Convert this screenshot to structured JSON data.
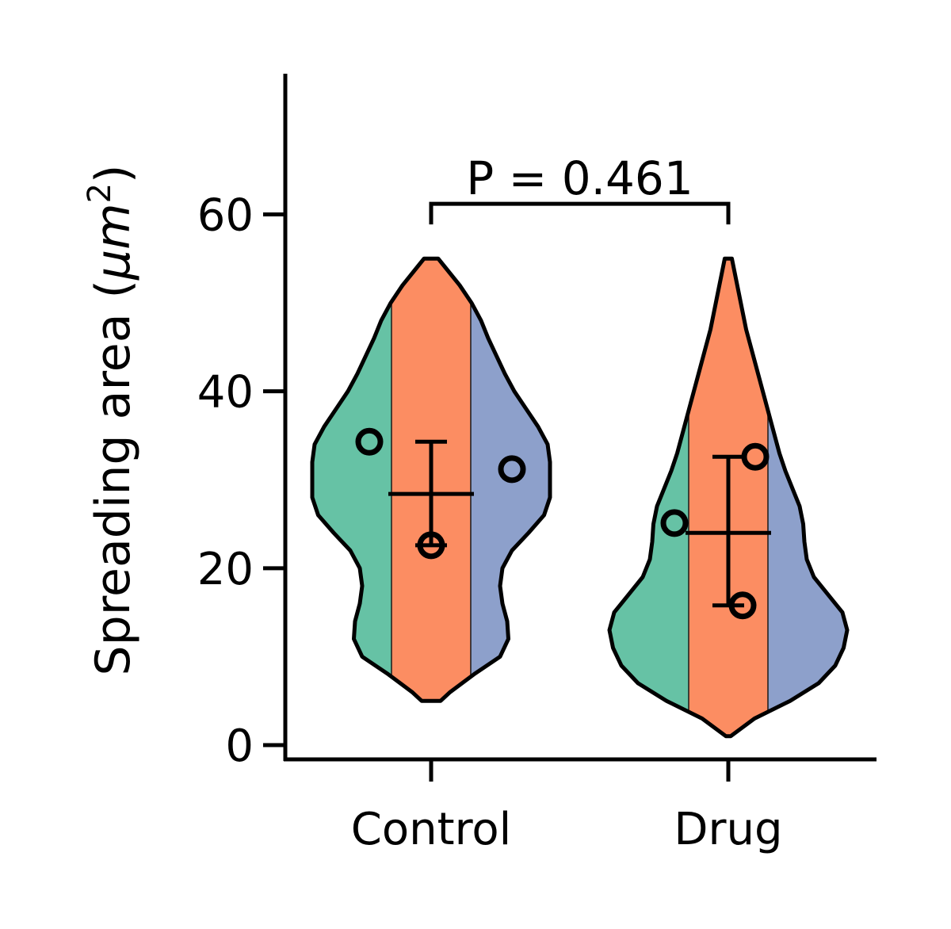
{
  "chart_data": {
    "type": "violin",
    "ylabel": "Spreading area (μm²)",
    "ylabel_main": "Spreading area (",
    "ylabel_unit": "μm",
    "ylabel_sup": "2",
    "ylabel_close": ")",
    "ylim": [
      0,
      76
    ],
    "yticks": [
      0,
      20,
      40,
      60
    ],
    "categories": [
      "Control",
      "Drug"
    ],
    "replicate_colors": [
      "#66c2a5",
      "#fc8d62",
      "#8da0cb"
    ],
    "groups": [
      {
        "name": "Control",
        "replicate_means": [
          34.3,
          22.6,
          31.2
        ],
        "mean": 28.4,
        "error": [
          22.6,
          34.3
        ],
        "range": [
          5,
          55
        ],
        "density": [
          {
            "y": 5,
            "w": 0.08
          },
          {
            "y": 6,
            "w": 0.16
          },
          {
            "y": 8,
            "w": 0.36
          },
          {
            "y": 10,
            "w": 0.58
          },
          {
            "y": 12,
            "w": 0.65
          },
          {
            "y": 14,
            "w": 0.64
          },
          {
            "y": 16,
            "w": 0.6
          },
          {
            "y": 18,
            "w": 0.58
          },
          {
            "y": 20,
            "w": 0.6
          },
          {
            "y": 22,
            "w": 0.68
          },
          {
            "y": 24,
            "w": 0.82
          },
          {
            "y": 26,
            "w": 0.95
          },
          {
            "y": 28,
            "w": 1.0
          },
          {
            "y": 30,
            "w": 1.0
          },
          {
            "y": 32,
            "w": 1.0
          },
          {
            "y": 34,
            "w": 0.98
          },
          {
            "y": 36,
            "w": 0.9
          },
          {
            "y": 38,
            "w": 0.8
          },
          {
            "y": 40,
            "w": 0.7
          },
          {
            "y": 42,
            "w": 0.62
          },
          {
            "y": 44,
            "w": 0.55
          },
          {
            "y": 46,
            "w": 0.48
          },
          {
            "y": 48,
            "w": 0.42
          },
          {
            "y": 50,
            "w": 0.34
          },
          {
            "y": 52,
            "w": 0.24
          },
          {
            "y": 54,
            "w": 0.12
          },
          {
            "y": 55,
            "w": 0.06
          }
        ]
      },
      {
        "name": "Drug",
        "replicate_means": [
          25.1,
          15.8,
          32.6
        ],
        "mean": 24.0,
        "error": [
          15.8,
          32.6
        ],
        "range": [
          1,
          55
        ],
        "density": [
          {
            "y": 1,
            "w": 0.02
          },
          {
            "y": 3,
            "w": 0.22
          },
          {
            "y": 5,
            "w": 0.52
          },
          {
            "y": 7,
            "w": 0.76
          },
          {
            "y": 9,
            "w": 0.9
          },
          {
            "y": 11,
            "w": 0.97
          },
          {
            "y": 13,
            "w": 1.0
          },
          {
            "y": 15,
            "w": 0.96
          },
          {
            "y": 17,
            "w": 0.84
          },
          {
            "y": 19,
            "w": 0.72
          },
          {
            "y": 21,
            "w": 0.66
          },
          {
            "y": 23,
            "w": 0.64
          },
          {
            "y": 25,
            "w": 0.63
          },
          {
            "y": 27,
            "w": 0.6
          },
          {
            "y": 29,
            "w": 0.54
          },
          {
            "y": 31,
            "w": 0.48
          },
          {
            "y": 33,
            "w": 0.43
          },
          {
            "y": 35,
            "w": 0.39
          },
          {
            "y": 37,
            "w": 0.35
          },
          {
            "y": 39,
            "w": 0.31
          },
          {
            "y": 41,
            "w": 0.27
          },
          {
            "y": 43,
            "w": 0.23
          },
          {
            "y": 45,
            "w": 0.19
          },
          {
            "y": 47,
            "w": 0.15
          },
          {
            "y": 49,
            "w": 0.12
          },
          {
            "y": 51,
            "w": 0.09
          },
          {
            "y": 53,
            "w": 0.06
          },
          {
            "y": 55,
            "w": 0.03
          }
        ]
      }
    ],
    "annotation": {
      "text": "P = 0.461",
      "between": [
        "Control",
        "Drug"
      ],
      "bracket_y": 61.2
    },
    "grid": false,
    "legend": "none"
  }
}
